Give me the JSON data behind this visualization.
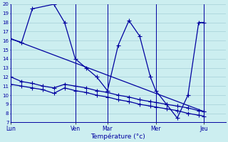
{
  "background_color": "#cceef0",
  "grid_color": "#9ac8d0",
  "line_color": "#0000a0",
  "ylabel": "Température (°c)",
  "ylim": [
    7,
    20
  ],
  "yticks": [
    7,
    8,
    9,
    10,
    11,
    12,
    13,
    14,
    15,
    16,
    17,
    18,
    19,
    20
  ],
  "day_labels": [
    "Lun",
    "Ven",
    "Mar",
    "Mer",
    "Jeu"
  ],
  "day_x": [
    0,
    96,
    144,
    216,
    288
  ],
  "xlim": [
    0,
    320
  ],
  "series": [
    {
      "x": [
        0,
        16,
        32,
        64,
        80,
        96,
        112,
        128,
        144,
        160,
        176,
        192,
        208,
        216,
        232,
        248,
        264,
        280,
        288
      ],
      "y": [
        16.2,
        15.8,
        19.5,
        20.0,
        18.0,
        14.0,
        13.0,
        12.0,
        10.5,
        15.5,
        18.2,
        16.5,
        12.0,
        10.5,
        9.0,
        7.5,
        10.0,
        18.0,
        18.0
      ]
    },
    {
      "x": [
        0,
        288
      ],
      "y": [
        16.2,
        8.2
      ]
    },
    {
      "x": [
        0,
        16,
        32,
        48,
        64,
        80,
        96,
        112,
        128,
        144,
        160,
        176,
        192,
        208,
        216,
        232,
        248,
        264,
        280,
        288
      ],
      "y": [
        12.0,
        11.5,
        11.3,
        11.0,
        10.8,
        11.2,
        11.0,
        10.8,
        10.5,
        10.3,
        10.0,
        9.8,
        9.5,
        9.3,
        9.2,
        9.0,
        8.8,
        8.6,
        8.3,
        8.2
      ]
    },
    {
      "x": [
        0,
        16,
        32,
        48,
        64,
        80,
        96,
        112,
        128,
        144,
        160,
        176,
        192,
        208,
        216,
        232,
        248,
        264,
        280,
        288
      ],
      "y": [
        11.2,
        11.0,
        10.8,
        10.6,
        10.2,
        10.8,
        10.5,
        10.3,
        10.0,
        9.8,
        9.5,
        9.3,
        9.0,
        8.8,
        8.7,
        8.5,
        8.3,
        8.0,
        7.8,
        7.7
      ]
    }
  ],
  "marker": "+",
  "markersize": 4,
  "linewidth": 0.9
}
